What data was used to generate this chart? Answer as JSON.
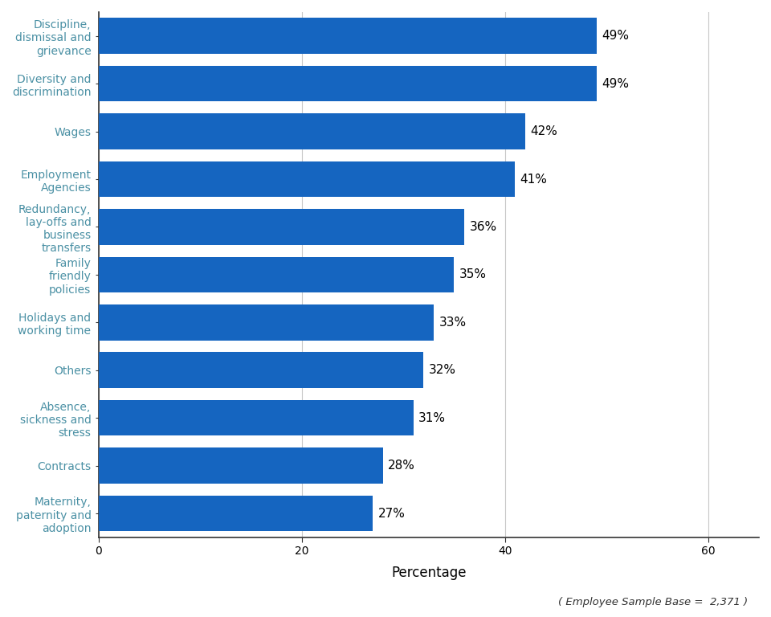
{
  "categories": [
    "Maternity,\npaternity and\nadoption",
    "Contracts",
    "Absence,\nsickness and\nstress",
    "Others",
    "Holidays and\nworking time",
    "Family\nfriendly\npolicies",
    "Redundancy,\nlay-offs and\nbusiness\ntransfers",
    "Employment\nAgencies",
    "Wages",
    "Diversity and\ndiscrimination",
    "Discipline,\ndismissal and\ngrievance"
  ],
  "values": [
    27,
    28,
    31,
    32,
    33,
    35,
    36,
    41,
    42,
    49,
    49
  ],
  "bar_color": "#1565C0",
  "label_color": "#000000",
  "ytick_color": "#4a90a4",
  "xlabel": "Percentage",
  "xlim": [
    0,
    65
  ],
  "xticks": [
    0,
    20,
    40,
    60
  ],
  "grid_color": "#c8c8c8",
  "background_color": "#ffffff",
  "footnote": "( Employee Sample Base =  2,371 )",
  "label_fontsize": 11,
  "tick_fontsize": 10,
  "xlabel_fontsize": 12,
  "bar_height": 0.75
}
